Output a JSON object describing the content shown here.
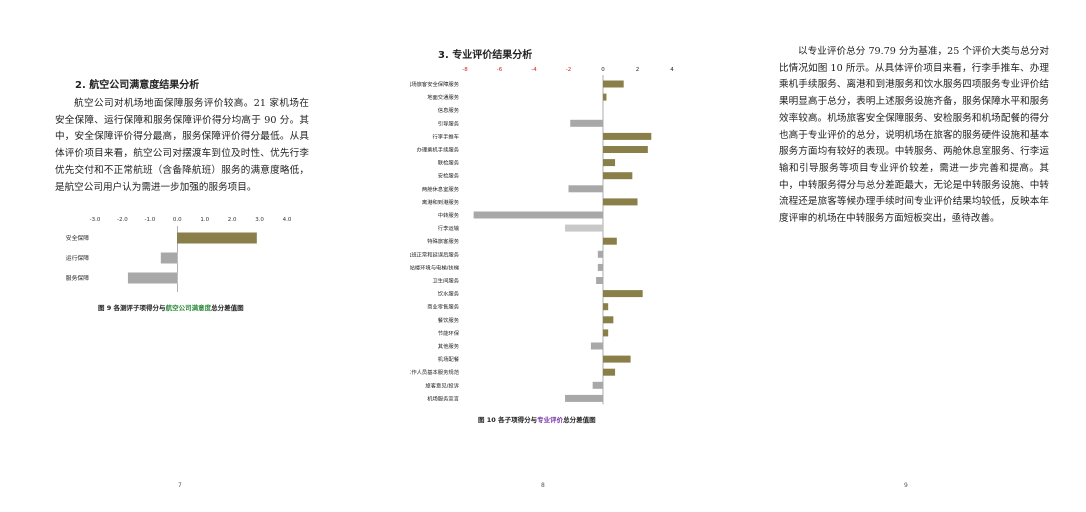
{
  "page7": {
    "heading": "2. 航空公司满意度结果分析",
    "paragraph": "航空公司对机场地面保障服务评价较高。21 家机场在安全保障、运行保障和服务保障评价得分均高于 90 分。其中，安全保障评价得分最高，服务保障评价得分最低。从具体评价项目来看，航空公司对摆渡车到位及时性、优先行李优先交付和不正常航班（含备降航班）服务的满意度略低，是航空公司用户认为需进一步加强的服务项目。",
    "caption_prefix": "图 9   各测评子项得分与",
    "caption_highlight": "航空公司满意度",
    "caption_suffix": "总分差值图",
    "page_number": "7"
  },
  "page8": {
    "heading": "3. 专业评价结果分析",
    "caption_prefix": "图 10   各子项得分与",
    "caption_highlight": "专业评价",
    "caption_suffix": "总分差值图",
    "page_number": "8"
  },
  "page9": {
    "paragraph": "以专业评价总分 79.79 分为基准，25 个评价大类与总分对比情况如图 10 所示。从具体评价项目来看，行李手推车、办理乘机手续服务、离港和到港服务和饮水服务四项服务专业评价结果明显高于总分，表明上述服务设施齐备，服务保障水平和服务效率较高。机场旅客安全保障服务、安检服务和机场配餐的得分也高于专业评价的总分，说明机场在旅客的服务硬件设施和基本服务方面均有较好的表现。中转服务、两舱休息室服务、行李运输和引导服务等项目专业评价较差，需进一步完善和提高。其中，中转服务得分与总分差距最大，无论是中转服务设施、中转流程还是旅客等候办理手续时间专业评价结果均较低，反映本年度评审的机场在中转服务方面短板突出，亟待改善。",
    "page_number": "9"
  },
  "chart_data": [
    {
      "type": "bar",
      "orientation": "horizontal",
      "categories": [
        "安全保障",
        "运行保障",
        "服务保障"
      ],
      "values": [
        2.9,
        -0.6,
        -1.8
      ],
      "xlim": [
        -3.0,
        4.0
      ],
      "ticks": [
        "-3.0",
        "-2.0",
        "-1.0",
        "0.0",
        "1.0",
        "2.0",
        "3.0",
        "4.0"
      ],
      "tick_values": [
        -3,
        -2,
        -1,
        0,
        1,
        2,
        3,
        4
      ],
      "colors": {
        "positive": "#8a7f49",
        "negative": "#a8a8a8"
      },
      "grid": false
    },
    {
      "type": "bar",
      "orientation": "horizontal",
      "categories": [
        "机场旅客安全保障服务",
        "地面交通服务",
        "信息服务",
        "引导服务",
        "行李手推车",
        "办理乘机手续服务",
        "联检服务",
        "安检服务",
        "两舱休息室服务",
        "离港和到港服务",
        "中转服务",
        "行李运输",
        "特殊旅客服务",
        "航班正常和延误后服务",
        "航站楼环境与电梯/扶梯",
        "卫生间服务",
        "饮水服务",
        "商业零售服务",
        "餐饮服务",
        "节能环保",
        "其他服务",
        "机场配餐",
        "工作人员基本服务规范",
        "旅客意见/投诉",
        "机场服务宣言"
      ],
      "values": [
        1.2,
        0.2,
        0.0,
        -1.9,
        2.8,
        2.6,
        0.7,
        1.7,
        -2.0,
        2.0,
        -7.5,
        -2.2,
        0.8,
        -0.3,
        -0.3,
        -0.4,
        2.3,
        0.3,
        0.6,
        0.3,
        -0.7,
        1.6,
        0.7,
        -0.6,
        -2.2
      ],
      "highlight_color": "#c8c8c8",
      "highlight_indices": [
        11
      ],
      "xlim": [
        -8,
        4
      ],
      "ticks": [
        "-8",
        "-6",
        "-4",
        "-2",
        "0",
        "2",
        "4"
      ],
      "tick_values": [
        -8,
        -6,
        -4,
        -2,
        0,
        2,
        4
      ],
      "colors": {
        "positive": "#8a7f49",
        "negative": "#a8a8a8",
        "neg_ticks": "#cc2222",
        "pos_ticks": "#222222"
      },
      "grid": false
    }
  ]
}
